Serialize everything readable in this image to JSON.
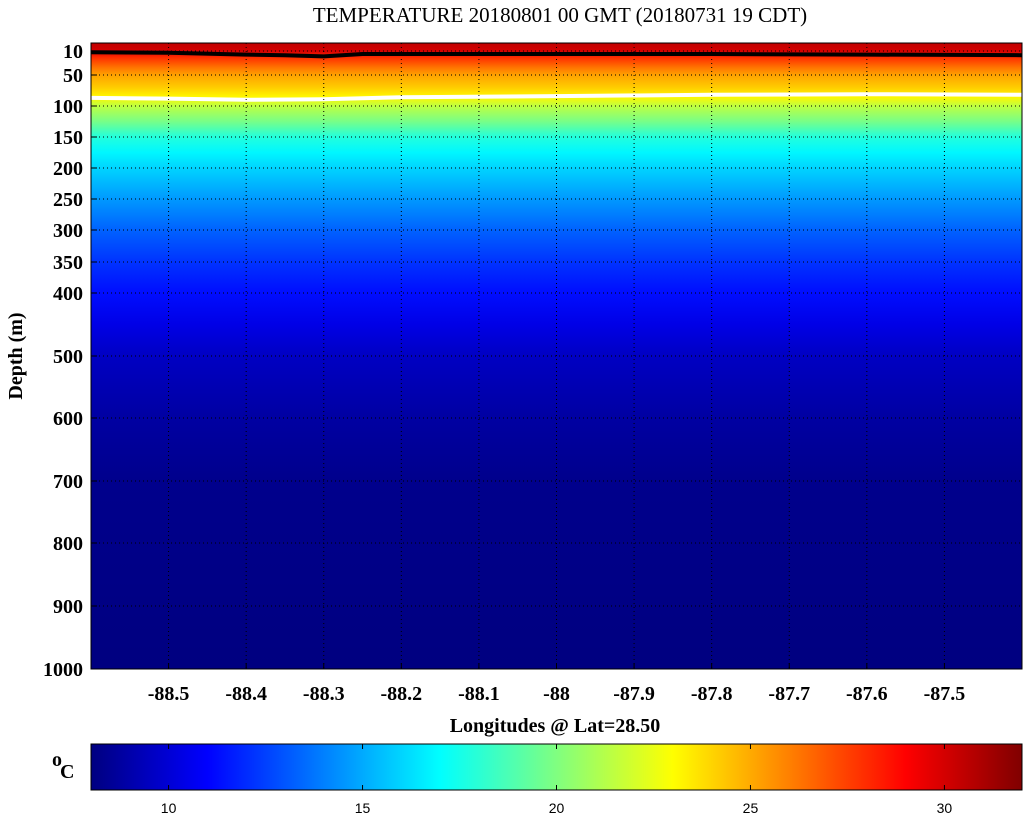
{
  "chart_data": {
    "type": "heatmap",
    "title": "TEMPERATURE 20180801 00 GMT (20180731 19 CDT)",
    "xlabel": "Longitudes @ Lat=28.50",
    "ylabel": "Depth (m)",
    "x_ticks": [
      "-88.5",
      "-88.4",
      "-88.3",
      "-88.2",
      "-88.1",
      "-88",
      "-87.9",
      "-87.8",
      "-87.7",
      "-87.6",
      "-87.5"
    ],
    "x_tick_values": [
      -88.5,
      -88.4,
      -88.3,
      -88.2,
      -88.1,
      -88.0,
      -87.9,
      -87.8,
      -87.7,
      -87.6,
      -87.5
    ],
    "xlim": [
      -88.6,
      -87.4
    ],
    "y_ticks": [
      "10",
      "50",
      "100",
      "150",
      "200",
      "250",
      "300",
      "350",
      "400",
      "500",
      "600",
      "700",
      "800",
      "900",
      "1000"
    ],
    "y_tick_values": [
      10,
      50,
      100,
      150,
      200,
      250,
      300,
      350,
      400,
      500,
      600,
      700,
      800,
      900,
      1000
    ],
    "ylim": [
      0,
      1000
    ],
    "y_reversed": true,
    "y_scale": "piecewise: 0-400 m compressed (~0.62 px/m), 400-1000 m (~0.63 px/m per 100 m step)",
    "grid": true,
    "depth_profile": [
      {
        "depth": 0,
        "temp": 30.5
      },
      {
        "depth": 10,
        "temp": 30.0
      },
      {
        "depth": 20,
        "temp": 28.0
      },
      {
        "depth": 35,
        "temp": 26.5
      },
      {
        "depth": 50,
        "temp": 25.2
      },
      {
        "depth": 70,
        "temp": 24.2
      },
      {
        "depth": 85,
        "temp": 23.2
      },
      {
        "depth": 100,
        "temp": 21.5
      },
      {
        "depth": 125,
        "temp": 19.8
      },
      {
        "depth": 150,
        "temp": 17.8
      },
      {
        "depth": 175,
        "temp": 16.8
      },
      {
        "depth": 200,
        "temp": 16.0
      },
      {
        "depth": 250,
        "temp": 14.6
      },
      {
        "depth": 300,
        "temp": 13.3
      },
      {
        "depth": 350,
        "temp": 12.2
      },
      {
        "depth": 400,
        "temp": 11.3
      },
      {
        "depth": 450,
        "temp": 10.4
      },
      {
        "depth": 500,
        "temp": 9.6
      },
      {
        "depth": 600,
        "temp": 8.8
      },
      {
        "depth": 700,
        "temp": 8.3
      },
      {
        "depth": 1000,
        "temp": 8.0
      }
    ],
    "contours": [
      {
        "label": "mixed layer",
        "color": "#000000",
        "lon": [
          -88.6,
          -88.5,
          -88.4,
          -88.35,
          -88.3,
          -88.25,
          -88.2,
          -88.0,
          -87.8,
          -87.6,
          -87.4
        ],
        "depth": [
          12,
          13,
          16,
          17,
          19,
          15,
          15,
          15,
          15,
          16,
          17
        ]
      },
      {
        "label": "isotherm",
        "color": "#ffffff",
        "lon": [
          -88.6,
          -88.5,
          -88.4,
          -88.3,
          -88.2,
          -88.0,
          -87.8,
          -87.6,
          -87.4
        ],
        "depth": [
          87,
          88,
          90,
          89,
          86,
          84,
          82,
          81,
          82
        ]
      }
    ],
    "colorbar": {
      "label_main": "o",
      "label_unit": "C",
      "range": [
        8,
        32
      ],
      "ticks": [
        "10",
        "15",
        "20",
        "25",
        "30"
      ],
      "tick_values": [
        10,
        15,
        20,
        25,
        30
      ],
      "colormap": "jet"
    }
  }
}
